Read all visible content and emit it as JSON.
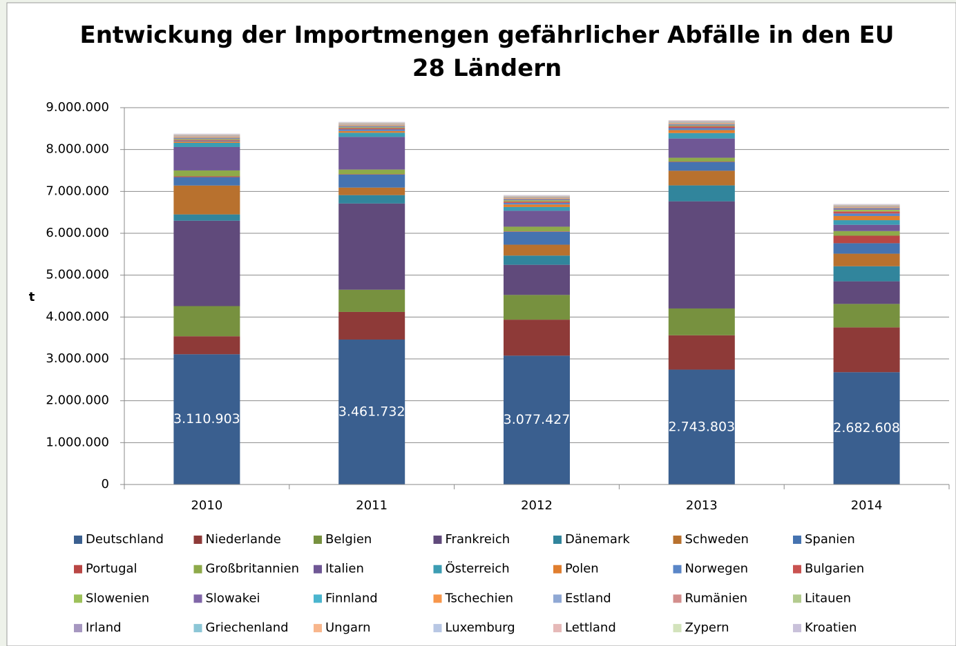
{
  "chart_data": {
    "type": "stacked_bar",
    "title": "Entwickung der Importmengen gefährlicher Abfälle in den EU 28 Ländern",
    "y_label": "t",
    "categories": [
      "2010",
      "2011",
      "2012",
      "2013",
      "2014"
    ],
    "ylim": [
      0,
      9000000
    ],
    "yticks": [
      0,
      {
        "value": 1000000,
        "label": "1.000.000"
      },
      {
        "value": 2000000,
        "label": "2.000.000"
      },
      {
        "value": 3000000,
        "label": "3.000.000"
      },
      {
        "value": 4000000,
        "label": "4.000.000"
      },
      {
        "value": 5000000,
        "label": "5.000.000"
      },
      {
        "value": 6000000,
        "label": "6.000.000"
      },
      {
        "value": 7000000,
        "label": "7.000.000"
      },
      {
        "value": 8000000,
        "label": "8.000.000"
      },
      {
        "value": 9000000,
        "label": "9.000.000"
      }
    ],
    "grid": true,
    "legend": "bottom",
    "series": [
      {
        "name": "Deutschland",
        "color": "#3a5f8f",
        "values": [
          3110903,
          3461732,
          3077427,
          2743803,
          2682608
        ],
        "value_labels": [
          "3.110.903",
          "3.461.732",
          "3.077.427",
          "2.743.803",
          "2.682.608"
        ]
      },
      {
        "name": "Niederlande",
        "color": "#8e3a38",
        "values": [
          430000,
          660000,
          860000,
          820000,
          1070000
        ]
      },
      {
        "name": "Belgien",
        "color": "#77913f",
        "values": [
          720000,
          530000,
          590000,
          640000,
          560000
        ]
      },
      {
        "name": "Frankreich",
        "color": "#604a7b",
        "values": [
          2040000,
          2060000,
          720000,
          2560000,
          540000
        ]
      },
      {
        "name": "Dänemark",
        "color": "#31859c",
        "values": [
          150000,
          200000,
          220000,
          380000,
          360000
        ]
      },
      {
        "name": "Schweden",
        "color": "#b8712e",
        "values": [
          690000,
          180000,
          260000,
          350000,
          300000
        ]
      },
      {
        "name": "Spanien",
        "color": "#4573b0",
        "values": [
          200000,
          310000,
          310000,
          210000,
          250000
        ]
      },
      {
        "name": "Portugal",
        "color": "#b94644",
        "values": [
          20000,
          10000,
          10000,
          10000,
          180000
        ]
      },
      {
        "name": "Großbritannien",
        "color": "#8eaa4a",
        "values": [
          140000,
          110000,
          110000,
          90000,
          110000
        ]
      },
      {
        "name": "Italien",
        "color": "#6f5795",
        "values": [
          560000,
          780000,
          380000,
          460000,
          150000
        ]
      },
      {
        "name": "Österreich",
        "color": "#3c9db3",
        "values": [
          100000,
          100000,
          90000,
          130000,
          110000
        ]
      },
      {
        "name": "Polen",
        "color": "#e07e2e",
        "values": [
          30000,
          40000,
          60000,
          70000,
          100000
        ]
      },
      {
        "name": "Norwegen",
        "color": "#5a86c7",
        "values": [
          20000,
          40000,
          40000,
          50000,
          60000
        ]
      },
      {
        "name": "Bulgarien",
        "color": "#c95250",
        "values": [
          20000,
          30000,
          30000,
          40000,
          50000
        ]
      },
      {
        "name": "Slowenien",
        "color": "#9dc15a",
        "values": [
          20000,
          20000,
          30000,
          20000,
          40000
        ]
      },
      {
        "name": "Slowakei",
        "color": "#8066a8",
        "values": [
          20000,
          20000,
          20000,
          20000,
          30000
        ]
      },
      {
        "name": "Finnland",
        "color": "#4ab5ce",
        "values": [
          10000,
          10000,
          10000,
          10000,
          10000
        ]
      },
      {
        "name": "Tschechien",
        "color": "#f7964a",
        "values": [
          20000,
          20000,
          20000,
          20000,
          20000
        ]
      },
      {
        "name": "Estland",
        "color": "#8fa8d4",
        "values": [
          10000,
          10000,
          10000,
          10000,
          10000
        ]
      },
      {
        "name": "Rumänien",
        "color": "#d38e8c",
        "values": [
          10000,
          10000,
          10000,
          10000,
          10000
        ]
      },
      {
        "name": "Litauen",
        "color": "#b3cb8e",
        "values": [
          10000,
          10000,
          10000,
          10000,
          10000
        ]
      },
      {
        "name": "Irland",
        "color": "#a697c0",
        "values": [
          10000,
          10000,
          10000,
          10000,
          10000
        ]
      },
      {
        "name": "Griechenland",
        "color": "#8cc6d6",
        "values": [
          5000,
          5000,
          5000,
          5000,
          5000
        ]
      },
      {
        "name": "Ungarn",
        "color": "#f8b68c",
        "values": [
          10000,
          10000,
          10000,
          10000,
          10000
        ]
      },
      {
        "name": "Luxemburg",
        "color": "#b8c7e4",
        "values": [
          10000,
          10000,
          10000,
          10000,
          10000
        ]
      },
      {
        "name": "Lettland",
        "color": "#e6b9b8",
        "values": [
          5000,
          5000,
          5000,
          5000,
          5000
        ]
      },
      {
        "name": "Zypern",
        "color": "#d3e3bc",
        "values": [
          2000,
          2000,
          2000,
          2000,
          2000
        ]
      },
      {
        "name": "Kroatien",
        "color": "#c9c1da",
        "values": [
          5000,
          5000,
          5000,
          5000,
          5000
        ]
      }
    ]
  }
}
